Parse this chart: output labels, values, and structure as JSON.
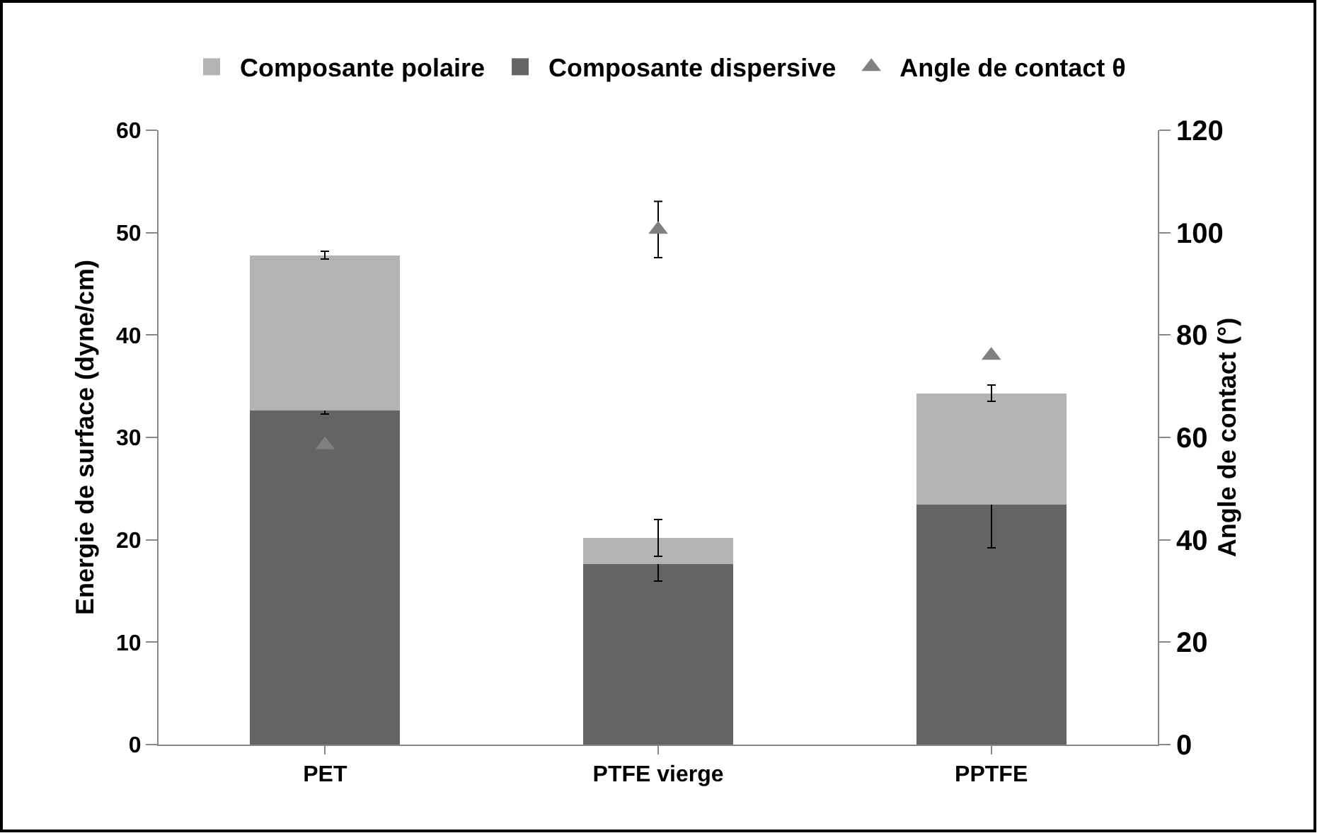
{
  "chart_data": {
    "type": "bar",
    "stacked": true,
    "categories": [
      "PET",
      "PTFE vierge",
      "PPTFE"
    ],
    "ylabel": "Energie de surface (dyne/cm)",
    "y2label": "Angle de contact (°)",
    "ylim": [
      0,
      60
    ],
    "yticks": [
      0,
      10,
      20,
      30,
      40,
      50,
      60
    ],
    "y2lim": [
      0,
      120
    ],
    "y2ticks": [
      0,
      20,
      40,
      60,
      80,
      100,
      120
    ],
    "grid": false,
    "legend": "top",
    "series": [
      {
        "name": "Composante dispersive",
        "color": "#646464",
        "values": [
          32.6,
          17.6,
          23.4
        ],
        "errors": [
          0.3,
          1.6,
          4.2
        ]
      },
      {
        "name": "Composante polaire",
        "color": "#b3b3b3",
        "values": [
          15.2,
          2.6,
          10.9
        ],
        "errors": [
          0.4,
          1.8,
          0.8
        ]
      },
      {
        "name": "Angle de contact θ",
        "type": "scatter",
        "axis": "y2",
        "marker": "triangle",
        "color": "#808080",
        "values": [
          58.5,
          100.6,
          76
        ],
        "errors": [
          null,
          5.5,
          null
        ]
      }
    ]
  }
}
